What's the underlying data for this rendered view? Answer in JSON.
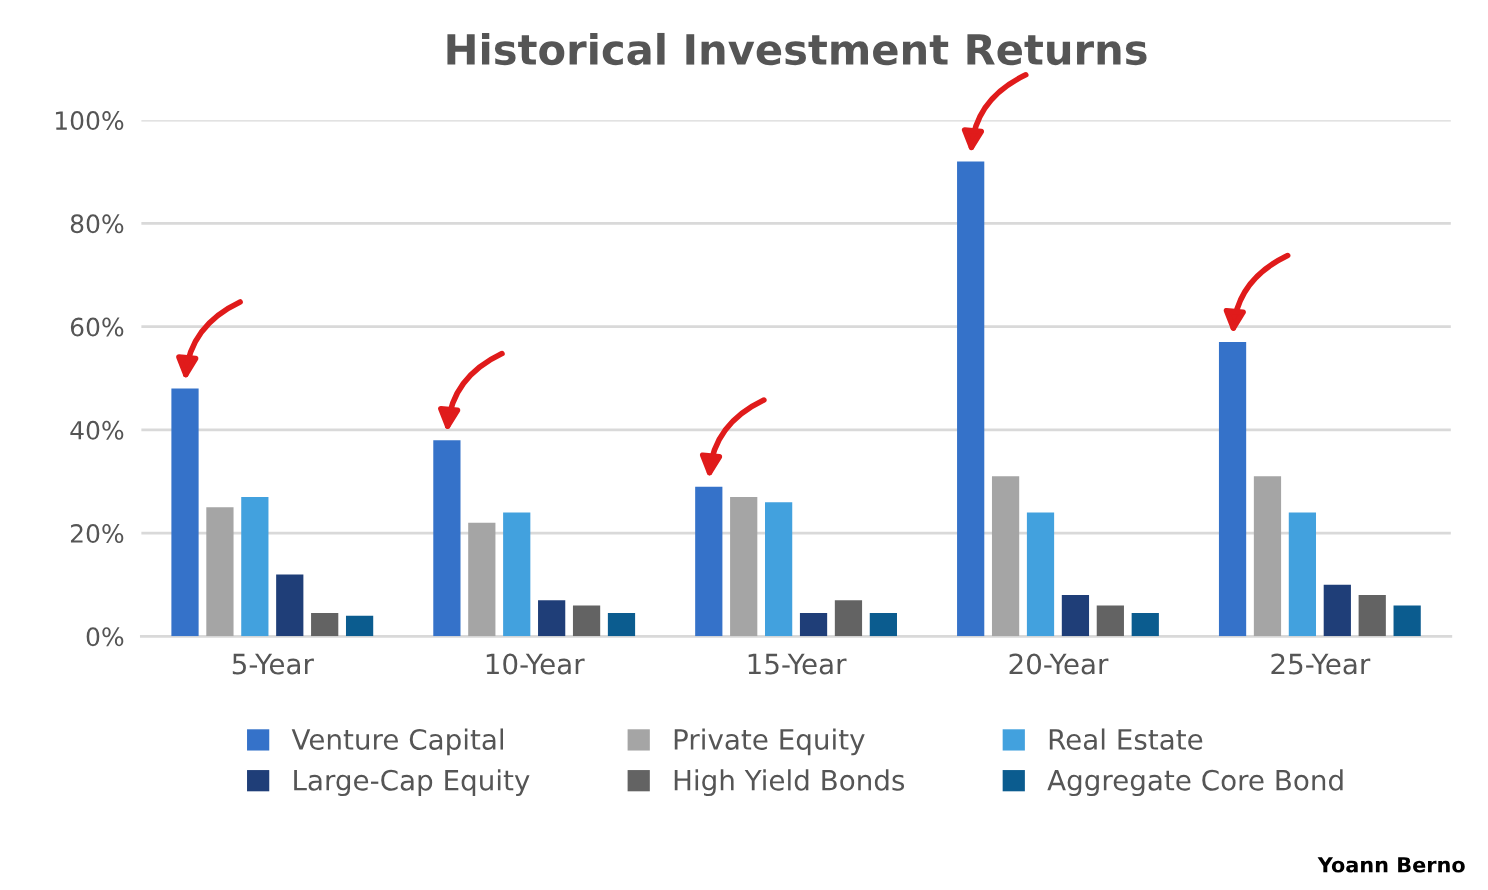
{
  "chart_data": {
    "type": "bar",
    "title": "Historical Investment Returns",
    "categories": [
      "5-Year",
      "10-Year",
      "15-Year",
      "20-Year",
      "25-Year"
    ],
    "series": [
      {
        "name": "Venture Capital",
        "color": "#3572c9",
        "values": [
          48,
          38,
          29,
          92,
          57
        ]
      },
      {
        "name": "Private Equity",
        "color": "#a5a5a5",
        "values": [
          25,
          22,
          27,
          31,
          31
        ]
      },
      {
        "name": "Real Estate",
        "color": "#42a1de",
        "values": [
          27,
          24,
          26,
          24,
          24
        ]
      },
      {
        "name": "Large-Cap Equity",
        "color": "#1f3e78",
        "values": [
          12,
          7,
          4.5,
          8,
          10
        ]
      },
      {
        "name": "High Yield Bonds",
        "color": "#636363",
        "values": [
          4.5,
          6,
          7,
          6,
          8
        ]
      },
      {
        "name": "Aggregate Core Bond",
        "color": "#0b5c8f",
        "values": [
          4,
          4.5,
          4.5,
          4.5,
          6
        ]
      }
    ],
    "ylim": [
      0,
      100
    ],
    "yticks": [
      {
        "value": 0,
        "label": "0%"
      },
      {
        "value": 20,
        "label": "20%"
      },
      {
        "value": 40,
        "label": "40%"
      },
      {
        "value": 60,
        "label": "60%"
      },
      {
        "value": 80,
        "label": "80%"
      },
      {
        "value": 100,
        "label": "100%"
      }
    ],
    "grid": "y",
    "legend": "bottom",
    "annotations": [
      "Yoann Berno"
    ]
  }
}
